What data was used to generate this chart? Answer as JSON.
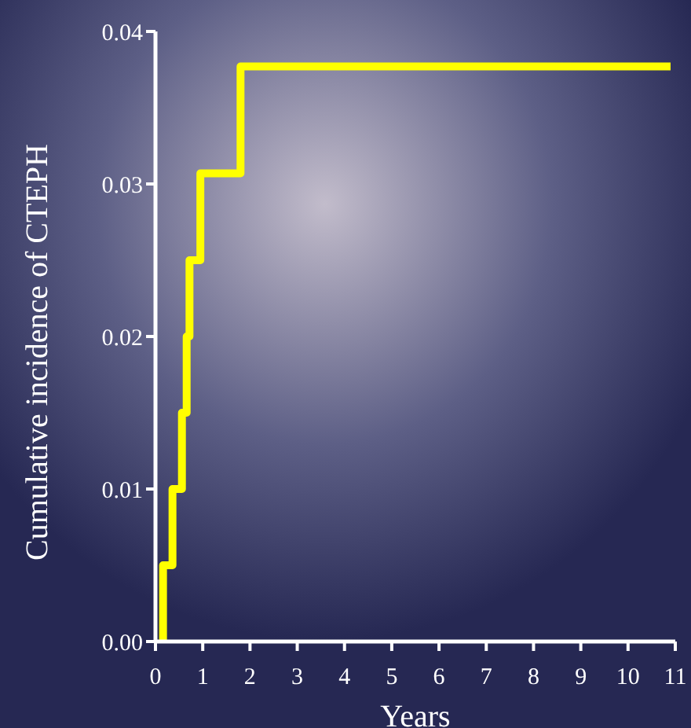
{
  "chart_data": {
    "type": "step",
    "xlabel": "Years",
    "ylabel": "Cumulative incidence of CTEPH",
    "series": [
      {
        "color": "#ffff00",
        "x": [
          0.16,
          0.16,
          0.36,
          0.56,
          0.66,
          0.72,
          0.95,
          1.8,
          10.9
        ],
        "values": [
          0,
          0.005,
          0.01,
          0.015,
          0.02,
          0.025,
          0.0307,
          0.0377,
          0.0377
        ]
      }
    ],
    "xlim": [
      0,
      11
    ],
    "xticks": [
      0,
      1,
      2,
      3,
      4,
      5,
      6,
      7,
      8,
      9,
      10,
      11
    ],
    "ylim": [
      0,
      0.04
    ],
    "yticks": [
      {
        "value": 0,
        "label": "0.00"
      },
      {
        "value": 0.01,
        "label": "0.01"
      },
      {
        "value": 0.02,
        "label": "0.02"
      },
      {
        "value": 0.03,
        "label": "0.03"
      },
      {
        "value": 0.04,
        "label": "0.04"
      }
    ],
    "grid": false
  }
}
